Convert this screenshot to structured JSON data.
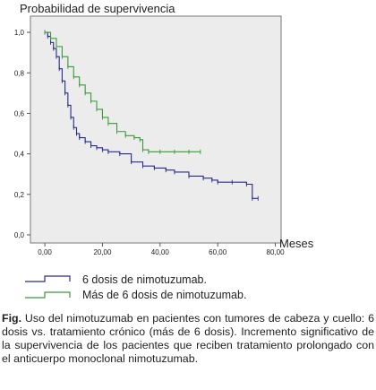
{
  "chart_data": {
    "type": "line",
    "ylabel": "Probabilidad de supervivencia",
    "xlabel": "Meses",
    "xlim": [
      -5,
      82
    ],
    "ylim": [
      -0.04,
      1.08
    ],
    "xticks": [
      "0,00",
      "20,00",
      "40,00",
      "60,00",
      "80,00"
    ],
    "xtick_values": [
      0,
      20,
      40,
      60,
      80
    ],
    "yticks": [
      "0,0",
      "0,2",
      "0,4",
      "0,6",
      "0,8",
      "1,0"
    ],
    "ytick_values": [
      0.0,
      0.2,
      0.4,
      0.6,
      0.8,
      1.0
    ],
    "grid": false,
    "series": [
      {
        "name": "6 dosis de nimotuzumab.",
        "color": "#2a2a8c",
        "x": [
          0,
          1,
          2,
          3,
          4,
          5,
          6,
          7,
          8,
          9,
          10,
          11,
          12,
          14,
          16,
          18,
          20,
          22,
          26,
          30,
          34,
          38,
          42,
          45,
          50,
          55,
          58,
          60,
          65,
          70,
          72,
          74
        ],
        "y": [
          1.0,
          0.98,
          0.95,
          0.92,
          0.88,
          0.82,
          0.76,
          0.7,
          0.64,
          0.58,
          0.53,
          0.5,
          0.48,
          0.46,
          0.44,
          0.43,
          0.42,
          0.41,
          0.4,
          0.36,
          0.34,
          0.33,
          0.32,
          0.31,
          0.29,
          0.28,
          0.27,
          0.26,
          0.26,
          0.25,
          0.18,
          0.18
        ]
      },
      {
        "name": "Más de 6  dosis de nimotuzumab.",
        "color": "#3a9a3a",
        "x": [
          0,
          2,
          4,
          6,
          8,
          10,
          12,
          14,
          16,
          18,
          20,
          22,
          25,
          28,
          31,
          33,
          34,
          36,
          40,
          45,
          50,
          54
        ],
        "y": [
          1.0,
          0.97,
          0.93,
          0.88,
          0.83,
          0.78,
          0.74,
          0.7,
          0.66,
          0.62,
          0.58,
          0.55,
          0.51,
          0.49,
          0.48,
          0.47,
          0.42,
          0.41,
          0.41,
          0.41,
          0.41,
          0.41
        ]
      }
    ]
  },
  "caption": {
    "label": "Fig.",
    "text": " Uso del nimotuzumab en pacientes con tumores de cabeza y cuello: 6 dosis vs. tratamiento crónico (más de 6 dosis). Incremento significativo de la supervivencia de los pacientes que reciben tratamiento prolongado con el anticuerpo monoclonal nimotuzumab."
  }
}
